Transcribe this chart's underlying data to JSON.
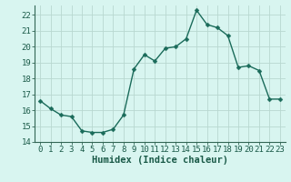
{
  "x": [
    0,
    1,
    2,
    3,
    4,
    5,
    6,
    7,
    8,
    9,
    10,
    11,
    12,
    13,
    14,
    15,
    16,
    17,
    18,
    19,
    20,
    21,
    22,
    23
  ],
  "y": [
    16.6,
    16.1,
    15.7,
    15.6,
    14.7,
    14.6,
    14.6,
    14.8,
    15.7,
    18.6,
    19.5,
    19.1,
    19.9,
    20.0,
    20.5,
    22.3,
    21.4,
    21.2,
    20.7,
    18.7,
    18.8,
    18.5,
    16.7,
    16.7
  ],
  "line_color": "#1a6b5a",
  "marker": "D",
  "marker_size": 2.5,
  "bg_color": "#d8f5f0",
  "grid_minor_color": "#c8e8e0",
  "grid_major_color": "#b8d8d0",
  "xlabel": "Humidex (Indice chaleur)",
  "xlim": [
    -0.5,
    23.5
  ],
  "ylim": [
    14,
    22.6
  ],
  "yticks": [
    14,
    15,
    16,
    17,
    18,
    19,
    20,
    21,
    22
  ],
  "xticks": [
    0,
    1,
    2,
    3,
    4,
    5,
    6,
    7,
    8,
    9,
    10,
    11,
    12,
    13,
    14,
    15,
    16,
    17,
    18,
    19,
    20,
    21,
    22,
    23
  ],
  "tick_fontsize": 6.5,
  "label_fontsize": 7.5,
  "line_width": 1.0
}
